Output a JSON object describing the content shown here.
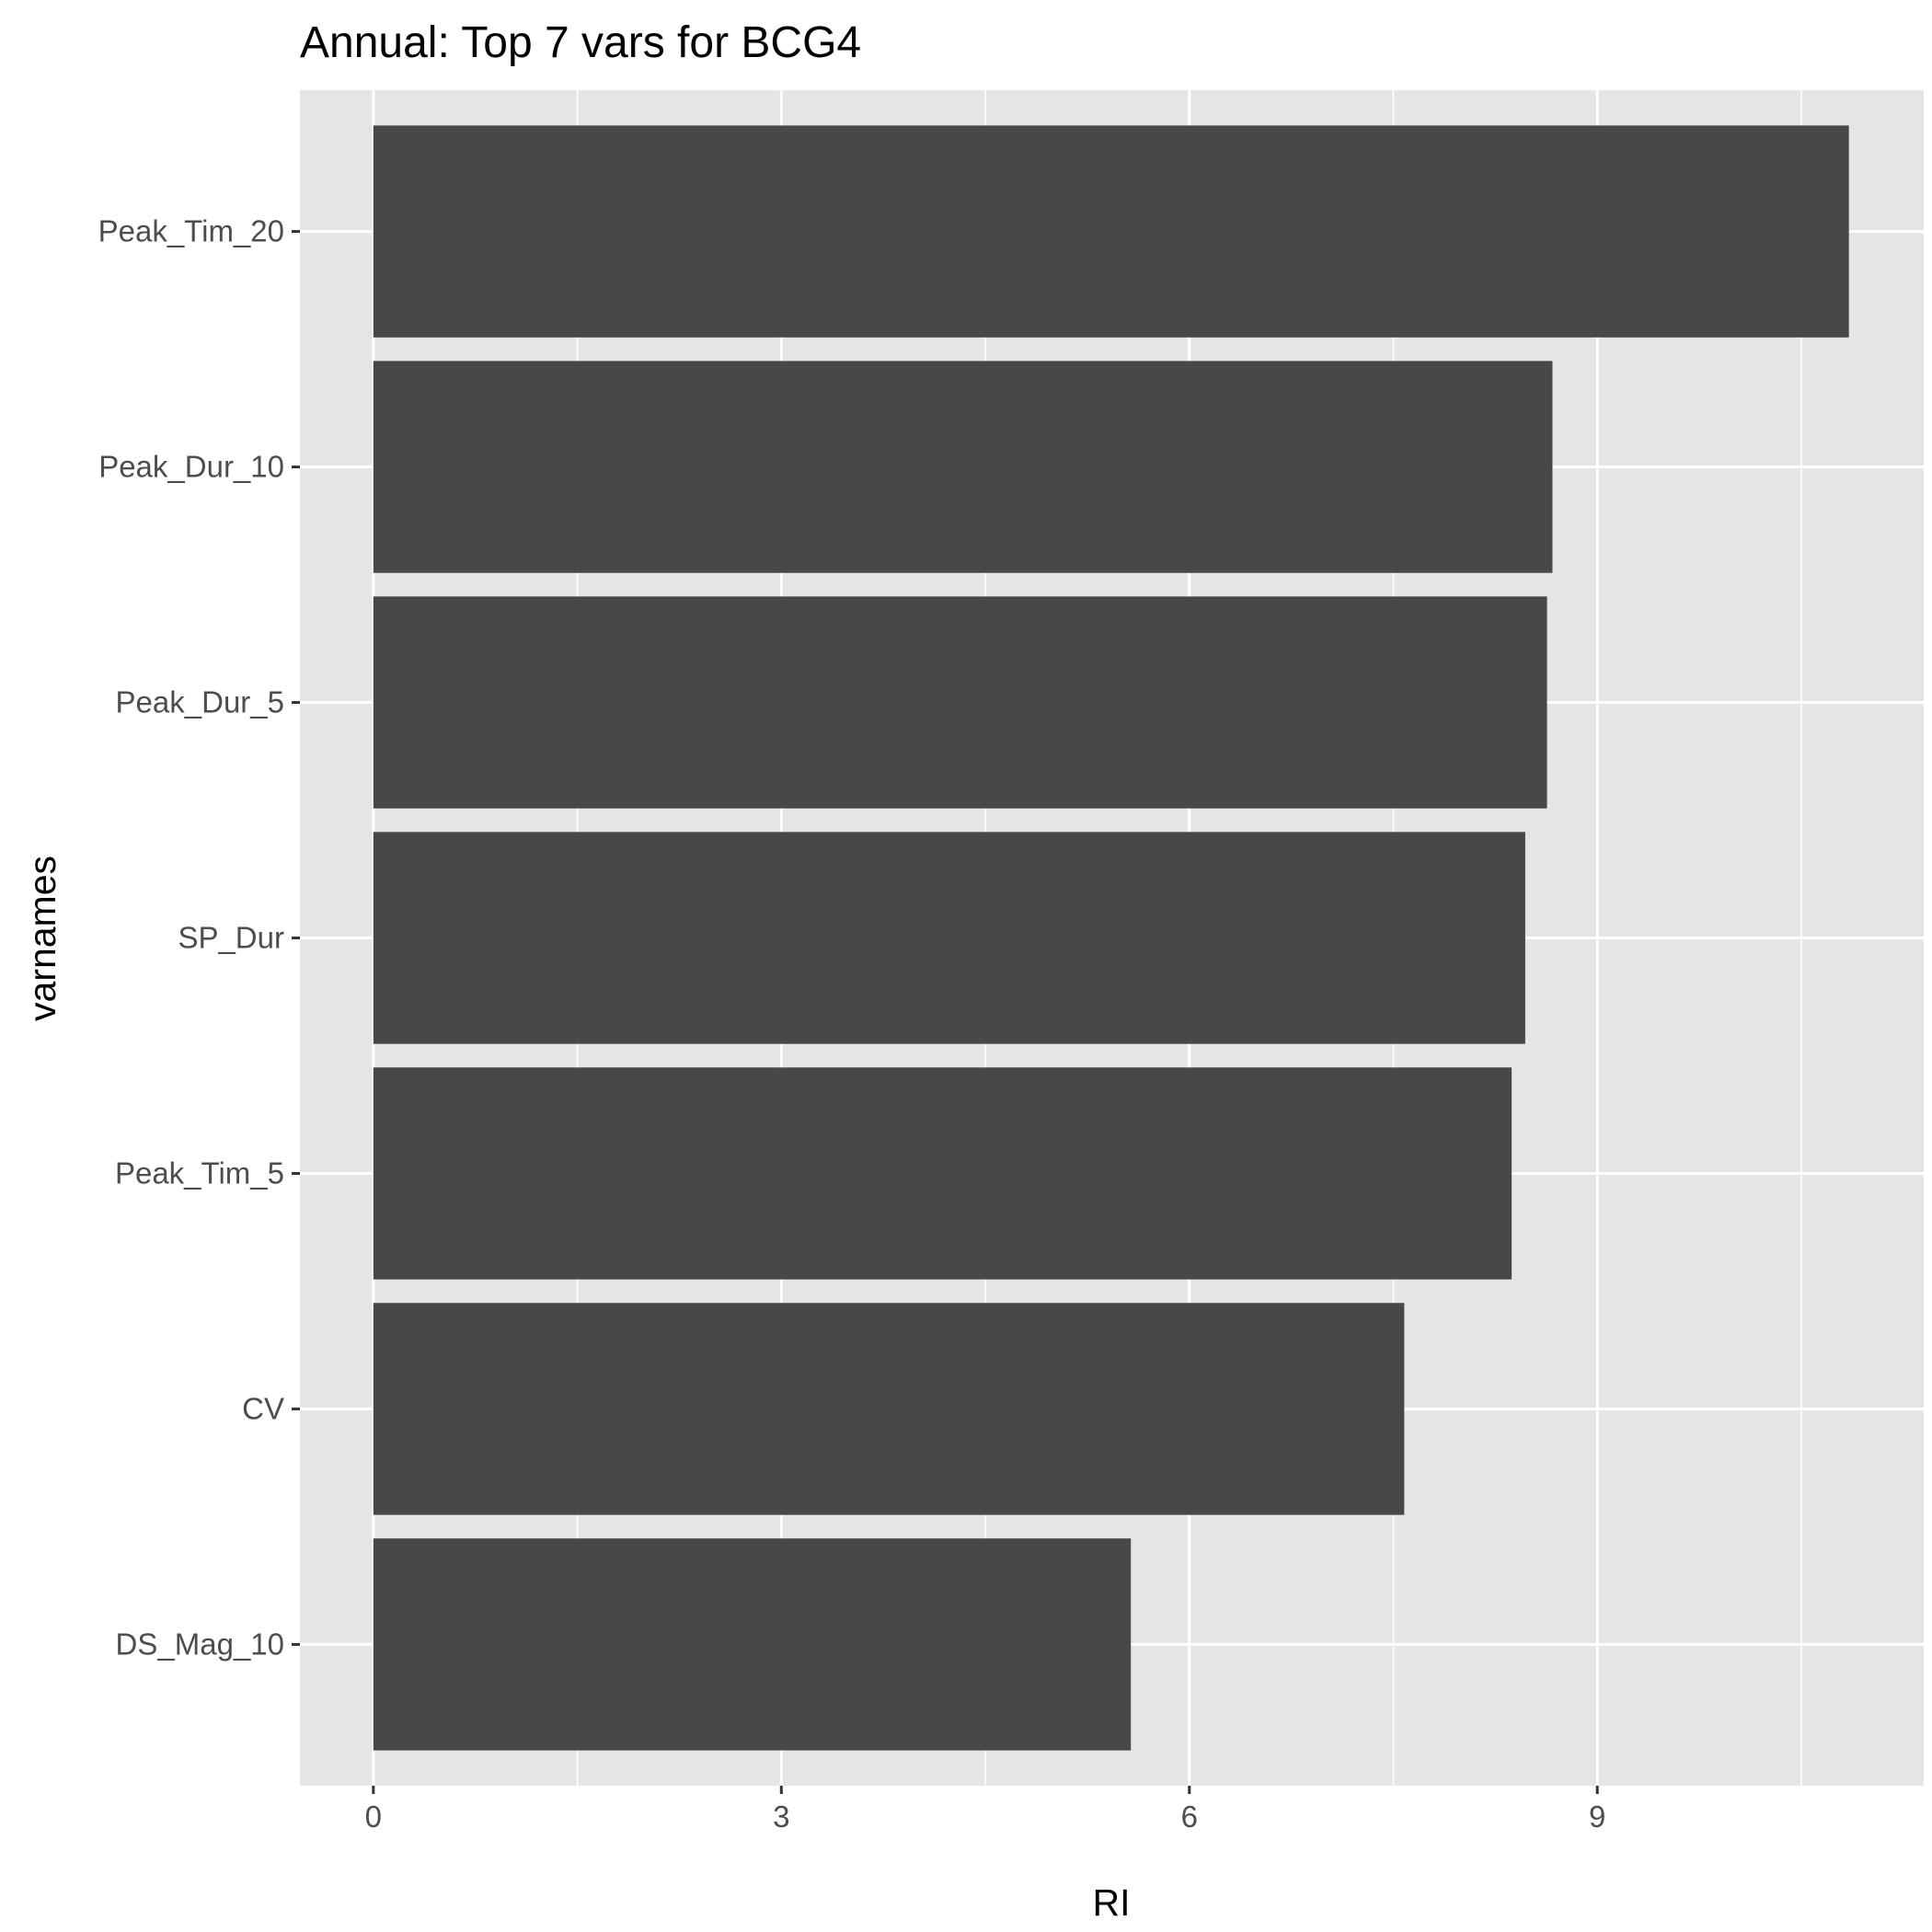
{
  "chart_data": {
    "type": "bar",
    "orientation": "horizontal",
    "title": "Annual: Top 7 vars for BCG4",
    "xlabel": "RI",
    "ylabel": "varnames",
    "categories": [
      "Peak_Tim_20",
      "Peak_Dur_10",
      "Peak_Dur_5",
      "SP_Dur",
      "Peak_Tim_5",
      "CV",
      "DS_Mag_10"
    ],
    "values": [
      10.85,
      8.67,
      8.63,
      8.47,
      8.37,
      7.58,
      5.57
    ],
    "xlim": [
      -0.54,
      11.4
    ],
    "xticks": [
      0,
      3,
      6,
      9
    ],
    "grid": true,
    "bar_color": "#484848",
    "panel_color": "#e5e5e5",
    "grid_color": "#ffffff"
  }
}
